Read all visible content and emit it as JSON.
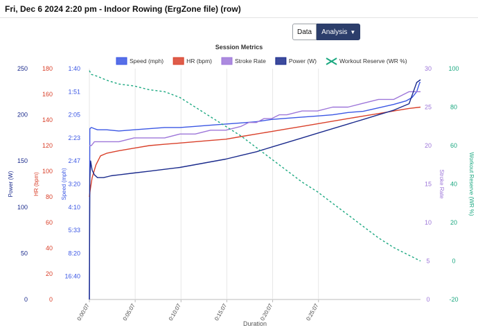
{
  "header": {
    "title": "Fri, Dec 6 2024 2:20 pm - Indoor Rowing (ErgZone file) (row)"
  },
  "toolbar": {
    "data_label": "Data",
    "analysis_label": "Analysis",
    "analysis_icon": "chevron-down-icon"
  },
  "colors": {
    "speed": "#3a56e4",
    "hr": "#d9402a",
    "stroke": "#9d76d9",
    "power": "#1a2a8c",
    "reserve": "#1ba880"
  },
  "chart_data": {
    "type": "line",
    "title": "Session Metrics",
    "xlabel": "Duration",
    "x_range_seconds": [
      7,
      2175
    ],
    "x_ticks": [
      {
        "label": "0:00:07",
        "s": 7
      },
      {
        "label": "0:05:07",
        "s": 307
      },
      {
        "label": "0:10:07",
        "s": 607
      },
      {
        "label": "0:15:07",
        "s": 907
      },
      {
        "label": "0:20:07",
        "s": 1207
      },
      {
        "label": "0:25:07",
        "s": 1507
      }
    ],
    "axes": [
      {
        "id": "power",
        "title": "Power (W)",
        "range": [
          0,
          250
        ],
        "ticks": [
          "0",
          "50",
          "100",
          "150",
          "200",
          "250"
        ],
        "tick_values": [
          0,
          50,
          100,
          150,
          200,
          250
        ],
        "side": "left"
      },
      {
        "id": "hr",
        "title": "HR (bpm)",
        "range": [
          0,
          180
        ],
        "ticks": [
          "0",
          "20",
          "40",
          "60",
          "80",
          "100",
          "120",
          "140",
          "160",
          "180"
        ],
        "tick_values": [
          0,
          20,
          40,
          60,
          80,
          100,
          120,
          140,
          160,
          180
        ],
        "side": "left"
      },
      {
        "id": "speed",
        "title": "Speed (mph)",
        "ticks": [
          "1:40",
          "1:51",
          "2:05",
          "2:23",
          "2:47",
          "3:20",
          "4:10",
          "5:33",
          "8:20",
          "16:40"
        ],
        "tick_fractions": [
          1.0,
          0.9,
          0.8,
          0.7,
          0.6,
          0.5,
          0.4,
          0.3,
          0.2,
          0.1
        ],
        "side": "left"
      },
      {
        "id": "stroke",
        "title": "Stroke Rate",
        "range": [
          0,
          30
        ],
        "ticks": [
          "0",
          "5",
          "10",
          "15",
          "20",
          "25",
          "30"
        ],
        "tick_values": [
          0,
          5,
          10,
          15,
          20,
          25,
          30
        ],
        "side": "right"
      },
      {
        "id": "reserve",
        "title": "Workout Reserve (WR %)",
        "range": [
          -20,
          100
        ],
        "ticks": [
          "-20",
          "0",
          "20",
          "40",
          "60",
          "80",
          "100"
        ],
        "tick_values": [
          -20,
          0,
          20,
          40,
          60,
          80,
          100
        ],
        "side": "right"
      }
    ],
    "series": [
      {
        "name": "Speed (mph)",
        "id": "speed",
        "axis": "speed",
        "style": "solid",
        "x": [
          7,
          10,
          20,
          40,
          60,
          120,
          200,
          300,
          400,
          500,
          600,
          700,
          800,
          900,
          1000,
          1100,
          1200,
          1300,
          1400,
          1500,
          1600,
          1700,
          1800,
          1900,
          2000,
          2080,
          2120,
          2150,
          2170,
          2175
        ],
        "y": [
          0.0,
          0.74,
          0.745,
          0.74,
          0.735,
          0.735,
          0.73,
          0.735,
          0.74,
          0.745,
          0.745,
          0.75,
          0.755,
          0.76,
          0.765,
          0.77,
          0.78,
          0.785,
          0.79,
          0.795,
          0.8,
          0.81,
          0.815,
          0.83,
          0.845,
          0.86,
          0.875,
          0.9,
          0.94,
          0.94
        ]
      },
      {
        "name": "HR (bpm)",
        "id": "hr",
        "axis": "hr",
        "style": "solid",
        "x": [
          7,
          12,
          25,
          50,
          80,
          120,
          200,
          300,
          400,
          500,
          600,
          700,
          800,
          900,
          1000,
          1100,
          1200,
          1300,
          1400,
          1500,
          1600,
          1700,
          1800,
          1900,
          2000,
          2100,
          2175
        ],
        "y": [
          80,
          85,
          95,
          105,
          112,
          114,
          116,
          118,
          120,
          121,
          122,
          123,
          124,
          125,
          127,
          129,
          131,
          133,
          135,
          137,
          139,
          141,
          143,
          145,
          147,
          149,
          150
        ]
      },
      {
        "name": "Stroke Rate",
        "id": "stroke",
        "axis": "stroke",
        "style": "solid",
        "x": [
          7,
          20,
          40,
          100,
          200,
          300,
          400,
          500,
          600,
          700,
          800,
          900,
          1000,
          1050,
          1100,
          1150,
          1200,
          1250,
          1300,
          1400,
          1500,
          1600,
          1700,
          1800,
          1900,
          2000,
          2100,
          2175
        ],
        "y": [
          20,
          20,
          20.5,
          20.5,
          20.5,
          21,
          21,
          21,
          21.5,
          21.5,
          22,
          22,
          22.5,
          23,
          23,
          23.5,
          23.5,
          24,
          24,
          24.5,
          24.5,
          25,
          25,
          25.5,
          26,
          26,
          27,
          27
        ]
      },
      {
        "name": "Power (W)",
        "id": "power",
        "axis": "power",
        "style": "solid",
        "x": [
          7,
          10,
          15,
          25,
          40,
          60,
          100,
          150,
          200,
          300,
          400,
          500,
          600,
          700,
          800,
          900,
          1000,
          1100,
          1200,
          1300,
          1400,
          1500,
          1600,
          1700,
          1800,
          1900,
          2000,
          2100,
          2150,
          2175
        ],
        "y": [
          0,
          130,
          150,
          140,
          135,
          132,
          132,
          134,
          135,
          137,
          139,
          141,
          143,
          146,
          149,
          152,
          156,
          160,
          165,
          170,
          175,
          180,
          185,
          190,
          195,
          200,
          205,
          212,
          235,
          238
        ]
      },
      {
        "name": "Workout Reserve (WR %)",
        "id": "reserve",
        "axis": "reserve",
        "style": "dashed",
        "x": [
          7,
          20,
          60,
          120,
          200,
          300,
          400,
          500,
          600,
          700,
          800,
          900,
          1000,
          1100,
          1200,
          1300,
          1400,
          1500,
          1600,
          1700,
          1800,
          1900,
          2000,
          2100,
          2175
        ],
        "y": [
          99,
          97,
          96,
          94,
          92,
          91,
          89,
          88,
          85,
          80,
          75,
          70,
          65,
          59,
          53,
          47,
          41,
          36,
          30,
          24,
          18,
          12,
          7,
          3,
          0
        ]
      }
    ]
  }
}
